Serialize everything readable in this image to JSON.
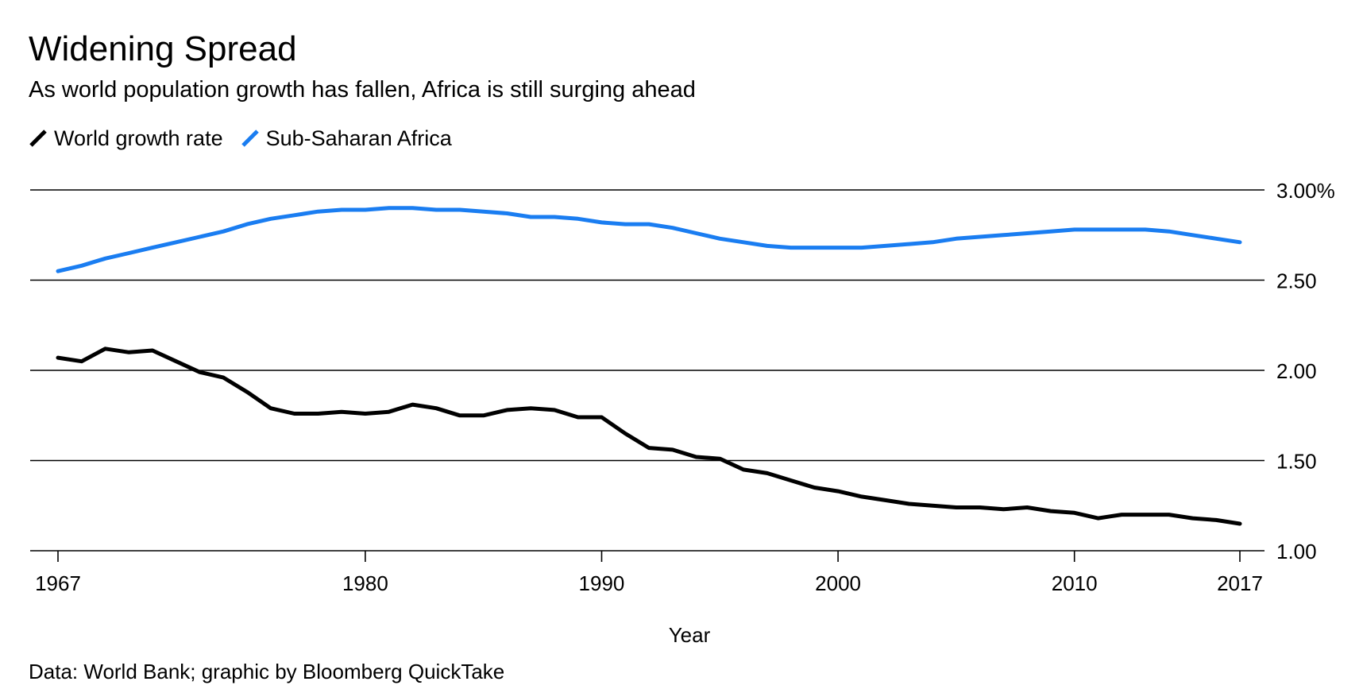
{
  "chart_data": {
    "type": "line",
    "title": "Widening Spread",
    "subtitle": "As world population growth has fallen, Africa is still surging ahead",
    "xlabel": "Year",
    "ylabel": "",
    "source": "Data: World Bank; graphic by Bloomberg QuickTake",
    "xlim": [
      1967,
      2017
    ],
    "ylim": [
      1.0,
      3.0
    ],
    "x_ticks": [
      {
        "value": 1967,
        "label": "1967"
      },
      {
        "value": 1980,
        "label": "1980"
      },
      {
        "value": 1990,
        "label": "1990"
      },
      {
        "value": 2000,
        "label": "2000"
      },
      {
        "value": 2010,
        "label": "2010"
      },
      {
        "value": 2017,
        "label": "2017"
      }
    ],
    "y_ticks": [
      {
        "value": 3.0,
        "label": "3.00%"
      },
      {
        "value": 2.5,
        "label": "2.50"
      },
      {
        "value": 2.0,
        "label": "2.00"
      },
      {
        "value": 1.5,
        "label": "1.50"
      },
      {
        "value": 1.0,
        "label": "1.00"
      }
    ],
    "grid": true,
    "legend_position": "top-left",
    "x": [
      1967,
      1968,
      1969,
      1970,
      1971,
      1972,
      1973,
      1974,
      1975,
      1976,
      1977,
      1978,
      1979,
      1980,
      1981,
      1982,
      1983,
      1984,
      1985,
      1986,
      1987,
      1988,
      1989,
      1990,
      1991,
      1992,
      1993,
      1994,
      1995,
      1996,
      1997,
      1998,
      1999,
      2000,
      2001,
      2002,
      2003,
      2004,
      2005,
      2006,
      2007,
      2008,
      2009,
      2010,
      2011,
      2012,
      2013,
      2014,
      2015,
      2016,
      2017
    ],
    "series": [
      {
        "name": "World growth rate",
        "color": "#000000",
        "values": [
          2.07,
          2.05,
          2.12,
          2.1,
          2.11,
          2.05,
          1.99,
          1.96,
          1.88,
          1.79,
          1.76,
          1.76,
          1.77,
          1.76,
          1.77,
          1.81,
          1.79,
          1.75,
          1.75,
          1.78,
          1.79,
          1.78,
          1.74,
          1.74,
          1.65,
          1.57,
          1.56,
          1.52,
          1.51,
          1.45,
          1.43,
          1.39,
          1.35,
          1.33,
          1.3,
          1.28,
          1.26,
          1.25,
          1.24,
          1.24,
          1.23,
          1.24,
          1.22,
          1.21,
          1.18,
          1.2,
          1.2,
          1.2,
          1.18,
          1.17,
          1.15
        ]
      },
      {
        "name": "Sub-Saharan Africa",
        "color": "#1a7df1",
        "values": [
          2.55,
          2.58,
          2.62,
          2.65,
          2.68,
          2.71,
          2.74,
          2.77,
          2.81,
          2.84,
          2.86,
          2.88,
          2.89,
          2.89,
          2.9,
          2.9,
          2.89,
          2.89,
          2.88,
          2.87,
          2.85,
          2.85,
          2.84,
          2.82,
          2.81,
          2.81,
          2.79,
          2.76,
          2.73,
          2.71,
          2.69,
          2.68,
          2.68,
          2.68,
          2.68,
          2.69,
          2.7,
          2.71,
          2.73,
          2.74,
          2.75,
          2.76,
          2.77,
          2.78,
          2.78,
          2.78,
          2.78,
          2.77,
          2.75,
          2.73,
          2.71
        ]
      }
    ]
  }
}
